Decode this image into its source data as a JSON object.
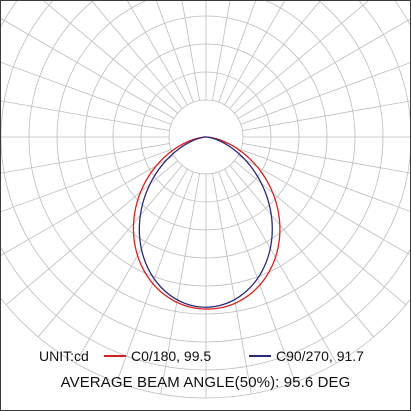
{
  "chart_data": {
    "type": "polar",
    "unit_label": "UNIT:cd",
    "series": [
      {
        "name": "C0/180, 99.5",
        "color": "#d42020",
        "beam_angle": 99.5
      },
      {
        "name": "C90/270, 91.7",
        "color": "#2a2a7a",
        "beam_angle": 91.7
      }
    ],
    "grid": true,
    "angular_step_deg": 10,
    "average_beam_angle_text": "AVERAGE BEAM ANGLE(50%): 95.6 DEG",
    "average_beam_angle": 95.6
  }
}
